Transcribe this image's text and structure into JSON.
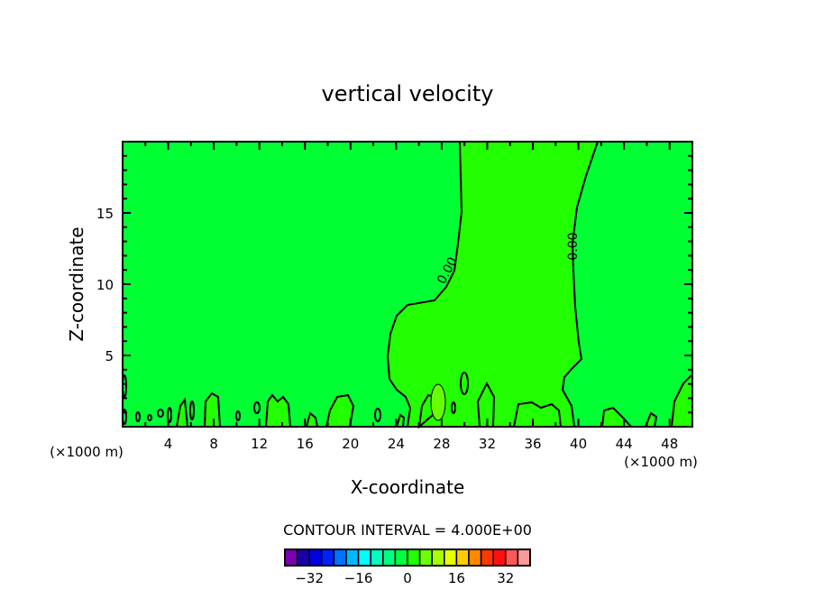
{
  "chart_data": {
    "type": "contour",
    "title": "vertical velocity",
    "xlabel": "X-coordinate",
    "ylabel": "Z-coordinate",
    "x_unit_label_left": "(×1000 m)",
    "x_unit_label_right": "(×1000 m)",
    "xlim": [
      0,
      50
    ],
    "ylim": [
      0,
      20
    ],
    "x_major_ticks": [
      4,
      8,
      12,
      16,
      20,
      24,
      28,
      32,
      36,
      40,
      44,
      48
    ],
    "x_tick_labels": [
      "4",
      "8",
      "12",
      "16",
      "20",
      "24",
      "28",
      "32",
      "36",
      "40",
      "44",
      "48"
    ],
    "y_major_ticks": [
      5,
      10,
      15
    ],
    "y_tick_labels": [
      "5",
      "10",
      "15"
    ],
    "contour_labels": [
      "0.00",
      "0.00"
    ],
    "contour_interval_text": "CONTOUR INTERVAL = 4.000E+00",
    "contour_interval": 4,
    "colorbar": {
      "min": -40,
      "max": 40,
      "colors": [
        "#7a00b0",
        "#1a00a8",
        "#0000e0",
        "#0020ff",
        "#0070ff",
        "#00b8ff",
        "#00ffff",
        "#00ffc0",
        "#00ff80",
        "#00ff40",
        "#22ff00",
        "#70ff00",
        "#a8ff00",
        "#e8ff00",
        "#ffcc00",
        "#ff8800",
        "#ff3800",
        "#ff1010",
        "#ff5858",
        "#ff9898"
      ],
      "tick_values": [
        -32,
        -16,
        0,
        16,
        32
      ],
      "tick_labels": [
        "−32",
        "−16",
        "0",
        "16",
        "32"
      ]
    },
    "field_colors": {
      "negative_small": "#00ff33",
      "positive_small": "#22ff00",
      "positive_mid": "#66ff00"
    }
  }
}
